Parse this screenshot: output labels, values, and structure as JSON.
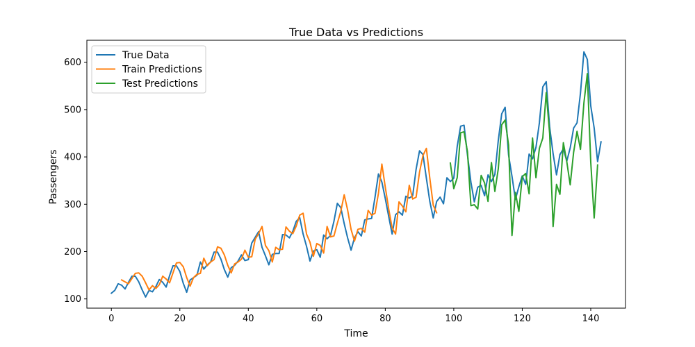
{
  "chart_data": {
    "type": "line",
    "title": "True Data vs Predictions",
    "xlabel": "Time",
    "ylabel": "Passengers",
    "xlim": [
      -7.15,
      150.15
    ],
    "ylim": [
      80.5,
      646.5
    ],
    "xticks": [
      0,
      20,
      40,
      60,
      80,
      100,
      120,
      140
    ],
    "yticks": [
      100,
      200,
      300,
      400,
      500,
      600
    ],
    "grid": false,
    "legend_position": "upper left",
    "series": [
      {
        "name": "True Data",
        "color": "#1f77b4",
        "x_start": 0,
        "values": [
          112,
          118,
          132,
          129,
          121,
          135,
          148,
          148,
          136,
          119,
          104,
          118,
          115,
          126,
          141,
          135,
          125,
          149,
          170,
          170,
          158,
          133,
          114,
          140,
          145,
          150,
          178,
          163,
          172,
          178,
          199,
          199,
          184,
          162,
          146,
          166,
          171,
          180,
          193,
          181,
          183,
          218,
          230,
          242,
          209,
          191,
          172,
          194,
          196,
          196,
          236,
          235,
          229,
          243,
          264,
          272,
          237,
          211,
          180,
          201,
          204,
          188,
          235,
          227,
          234,
          264,
          302,
          293,
          259,
          229,
          203,
          229,
          242,
          233,
          267,
          269,
          270,
          315,
          364,
          347,
          312,
          274,
          237,
          278,
          284,
          277,
          317,
          313,
          318,
          374,
          413,
          405,
          355,
          306,
          271,
          306,
          315,
          301,
          356,
          348,
          355,
          422,
          465,
          467,
          404,
          347,
          305,
          336,
          340,
          318,
          362,
          348,
          363,
          435,
          491,
          505,
          404,
          359,
          310,
          337,
          360,
          342,
          406,
          396,
          420,
          472,
          548,
          559,
          463,
          407,
          362,
          405,
          417,
          391,
          419,
          461,
          472,
          535,
          622,
          606,
          508,
          461,
          390,
          432
        ]
      },
      {
        "name": "Train Predictions",
        "color": "#ff7f0e",
        "x_start": 3,
        "values": [
          140,
          136,
          132,
          143,
          154,
          155,
          148,
          134,
          119,
          128,
          122,
          130,
          148,
          142,
          134,
          155,
          176,
          177,
          168,
          145,
          127,
          145,
          152,
          154,
          186,
          170,
          178,
          183,
          210,
          207,
          193,
          171,
          155,
          174,
          178,
          184,
          203,
          188,
          189,
          226,
          238,
          253,
          213,
          202,
          178,
          209,
          204,
          205,
          252,
          243,
          238,
          254,
          277,
          281,
          237,
          220,
          190,
          217,
          213,
          197,
          253,
          231,
          233,
          260,
          285,
          320,
          288,
          247,
          222,
          247,
          249,
          241,
          287,
          277,
          281,
          323,
          385,
          336,
          290,
          250,
          237,
          305,
          296,
          284,
          340,
          311,
          315,
          368,
          403,
          418,
          355,
          298,
          282
        ]
      },
      {
        "name": "Test Predictions",
        "color": "#2ca02c",
        "x_start": 99,
        "values": [
          387,
          333,
          356,
          451,
          453,
          411,
          297,
          299,
          290,
          361,
          345,
          306,
          388,
          327,
          375,
          468,
          478,
          425,
          234,
          325,
          285,
          358,
          365,
          322,
          440,
          356,
          418,
          440,
          536,
          449,
          253,
          342,
          321,
          430,
          390,
          341,
          410,
          454,
          416,
          514,
          576,
          389,
          271,
          383
        ]
      }
    ]
  }
}
